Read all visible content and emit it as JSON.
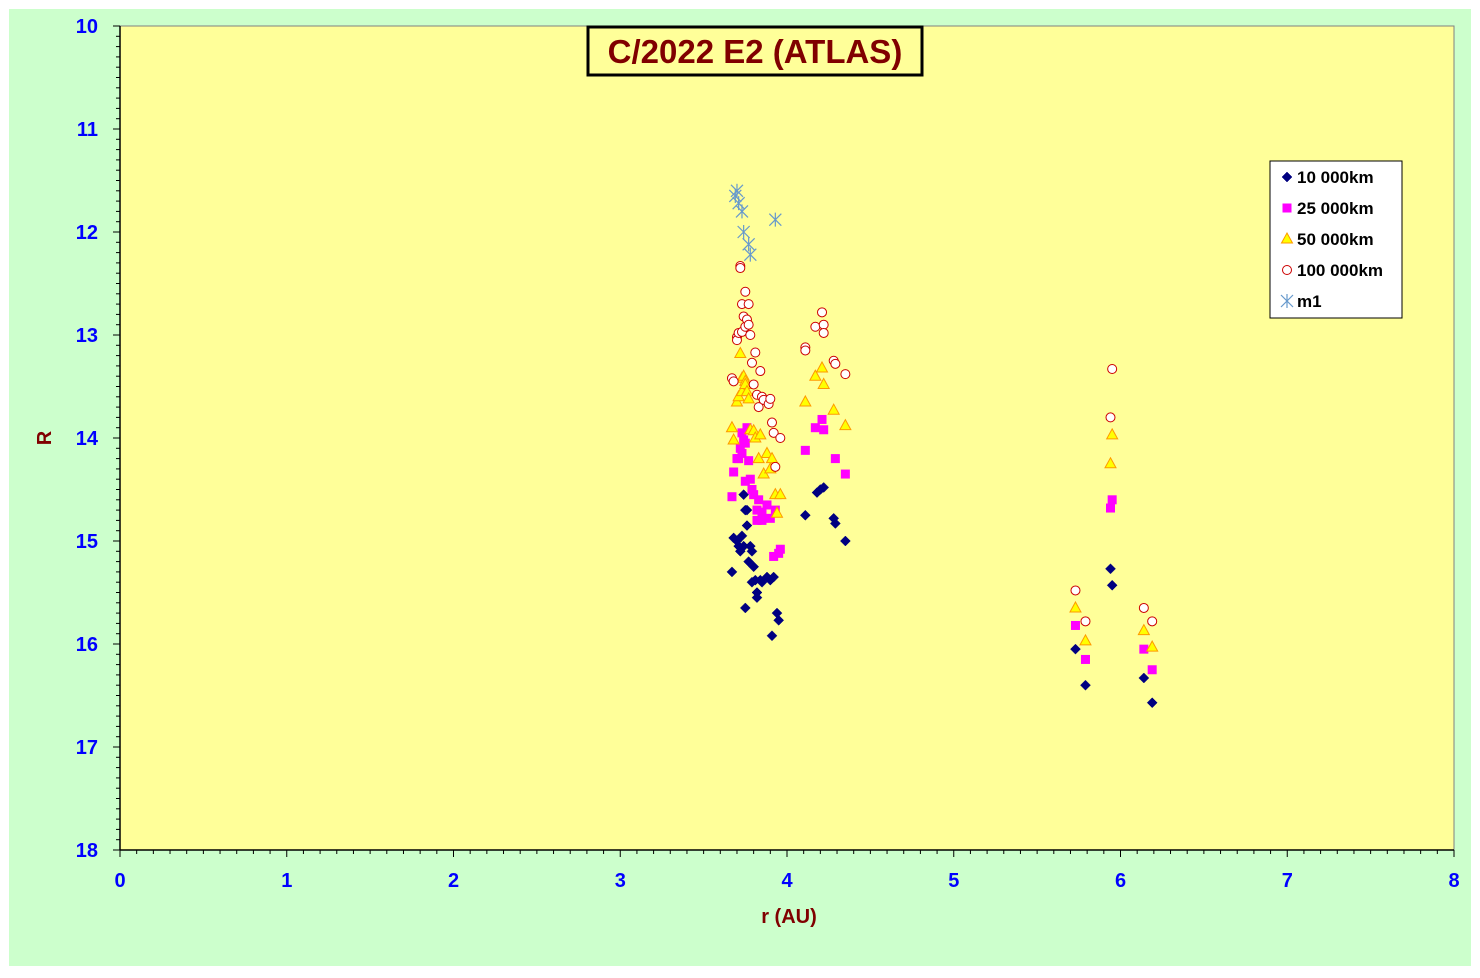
{
  "colors": {
    "outer_background": "#ccffcc",
    "plot_background": "#ffff99",
    "tick_label": "#0000ff",
    "axis_title": "#800000",
    "title_text": "#800000"
  },
  "chart_data": {
    "type": "scatter",
    "title": "C/2022 E2 (ATLAS)",
    "xlabel": "r (AU)",
    "ylabel": "R",
    "xlim": [
      0,
      8
    ],
    "ylim": [
      10,
      18
    ],
    "y_inverted": true,
    "grid": false,
    "legend_position": "top-right",
    "x_ticks": [
      "0",
      "1",
      "2",
      "3",
      "4",
      "5",
      "6",
      "7",
      "8"
    ],
    "y_ticks": [
      "10",
      "11",
      "12",
      "13",
      "14",
      "15",
      "16",
      "17",
      "18"
    ],
    "series": [
      {
        "name": "10 000km",
        "marker": "diamond",
        "color": "#000080",
        "points": [
          [
            3.67,
            15.3
          ],
          [
            3.68,
            14.97
          ],
          [
            3.7,
            15.0
          ],
          [
            3.71,
            15.05
          ],
          [
            3.72,
            15.1
          ],
          [
            3.73,
            14.95
          ],
          [
            3.74,
            15.05
          ],
          [
            3.74,
            14.55
          ],
          [
            3.75,
            15.65
          ],
          [
            3.75,
            14.7
          ],
          [
            3.76,
            14.7
          ],
          [
            3.76,
            14.85
          ],
          [
            3.77,
            15.2
          ],
          [
            3.78,
            15.05
          ],
          [
            3.79,
            15.1
          ],
          [
            3.79,
            15.4
          ],
          [
            3.8,
            15.25
          ],
          [
            3.81,
            15.38
          ],
          [
            3.82,
            15.5
          ],
          [
            3.82,
            15.55
          ],
          [
            3.84,
            15.38
          ],
          [
            3.85,
            15.4
          ],
          [
            3.88,
            15.35
          ],
          [
            3.9,
            15.38
          ],
          [
            3.91,
            15.92
          ],
          [
            3.92,
            15.35
          ],
          [
            3.94,
            15.7
          ],
          [
            3.95,
            15.77
          ],
          [
            4.11,
            14.75
          ],
          [
            4.18,
            14.53
          ],
          [
            4.2,
            14.5
          ],
          [
            4.22,
            14.48
          ],
          [
            4.28,
            14.78
          ],
          [
            4.29,
            14.83
          ],
          [
            4.35,
            15.0
          ],
          [
            5.73,
            16.05
          ],
          [
            5.79,
            16.4
          ],
          [
            5.94,
            15.27
          ],
          [
            5.95,
            15.43
          ],
          [
            6.14,
            16.33
          ],
          [
            6.19,
            16.57
          ]
        ]
      },
      {
        "name": "25 000km",
        "marker": "square",
        "color": "#ff00ff",
        "points": [
          [
            3.67,
            14.57
          ],
          [
            3.68,
            14.33
          ],
          [
            3.7,
            14.2
          ],
          [
            3.71,
            14.2
          ],
          [
            3.72,
            14.1
          ],
          [
            3.73,
            14.15
          ],
          [
            3.73,
            13.95
          ],
          [
            3.74,
            14.02
          ],
          [
            3.75,
            14.05
          ],
          [
            3.75,
            14.42
          ],
          [
            3.76,
            13.9
          ],
          [
            3.77,
            14.22
          ],
          [
            3.78,
            14.4
          ],
          [
            3.79,
            14.5
          ],
          [
            3.8,
            14.55
          ],
          [
            3.82,
            14.7
          ],
          [
            3.82,
            14.8
          ],
          [
            3.83,
            14.6
          ],
          [
            3.85,
            14.72
          ],
          [
            3.85,
            14.8
          ],
          [
            3.88,
            14.65
          ],
          [
            3.9,
            14.78
          ],
          [
            3.92,
            15.15
          ],
          [
            3.93,
            14.7
          ],
          [
            3.95,
            15.12
          ],
          [
            3.96,
            15.08
          ],
          [
            4.11,
            14.12
          ],
          [
            4.17,
            13.9
          ],
          [
            4.21,
            13.82
          ],
          [
            4.22,
            13.92
          ],
          [
            4.29,
            14.2
          ],
          [
            4.35,
            14.35
          ],
          [
            5.73,
            15.82
          ],
          [
            5.79,
            16.15
          ],
          [
            5.94,
            14.68
          ],
          [
            5.95,
            14.6
          ],
          [
            6.14,
            16.05
          ],
          [
            6.19,
            16.25
          ]
        ]
      },
      {
        "name": "50 000km",
        "marker": "triangle",
        "color": "#ff9900",
        "points": [
          [
            3.67,
            13.9
          ],
          [
            3.68,
            14.02
          ],
          [
            3.7,
            13.65
          ],
          [
            3.71,
            13.6
          ],
          [
            3.72,
            13.18
          ],
          [
            3.73,
            13.55
          ],
          [
            3.73,
            13.42
          ],
          [
            3.74,
            13.4
          ],
          [
            3.75,
            13.45
          ],
          [
            3.75,
            13.48
          ],
          [
            3.76,
            13.55
          ],
          [
            3.77,
            13.62
          ],
          [
            3.78,
            13.92
          ],
          [
            3.8,
            13.93
          ],
          [
            3.81,
            14.0
          ],
          [
            3.83,
            14.2
          ],
          [
            3.84,
            13.97
          ],
          [
            3.86,
            14.35
          ],
          [
            3.88,
            14.15
          ],
          [
            3.9,
            14.3
          ],
          [
            3.91,
            14.2
          ],
          [
            3.93,
            14.55
          ],
          [
            3.94,
            14.73
          ],
          [
            3.96,
            14.55
          ],
          [
            4.11,
            13.65
          ],
          [
            4.17,
            13.4
          ],
          [
            4.21,
            13.32
          ],
          [
            4.22,
            13.48
          ],
          [
            4.28,
            13.73
          ],
          [
            4.35,
            13.88
          ],
          [
            5.73,
            15.65
          ],
          [
            5.79,
            15.97
          ],
          [
            5.94,
            14.25
          ],
          [
            5.95,
            13.97
          ],
          [
            6.14,
            15.87
          ],
          [
            6.19,
            16.03
          ]
        ]
      },
      {
        "name": "100 000km",
        "marker": "circle",
        "color": "#cc0000",
        "points": [
          [
            3.67,
            13.42
          ],
          [
            3.68,
            13.45
          ],
          [
            3.7,
            13.02
          ],
          [
            3.7,
            13.05
          ],
          [
            3.71,
            12.98
          ],
          [
            3.72,
            12.33
          ],
          [
            3.72,
            12.35
          ],
          [
            3.73,
            12.97
          ],
          [
            3.73,
            12.7
          ],
          [
            3.74,
            12.82
          ],
          [
            3.75,
            12.58
          ],
          [
            3.75,
            12.92
          ],
          [
            3.76,
            12.85
          ],
          [
            3.77,
            12.7
          ],
          [
            3.77,
            12.9
          ],
          [
            3.78,
            13.0
          ],
          [
            3.79,
            13.27
          ],
          [
            3.8,
            13.48
          ],
          [
            3.81,
            13.17
          ],
          [
            3.82,
            13.58
          ],
          [
            3.83,
            13.7
          ],
          [
            3.84,
            13.35
          ],
          [
            3.85,
            13.6
          ],
          [
            3.86,
            13.63
          ],
          [
            3.89,
            13.67
          ],
          [
            3.9,
            13.62
          ],
          [
            3.91,
            13.85
          ],
          [
            3.92,
            13.95
          ],
          [
            3.93,
            14.28
          ],
          [
            3.96,
            14.0
          ],
          [
            4.11,
            13.12
          ],
          [
            4.11,
            13.15
          ],
          [
            4.17,
            12.92
          ],
          [
            4.21,
            12.78
          ],
          [
            4.22,
            12.9
          ],
          [
            4.22,
            12.98
          ],
          [
            4.28,
            13.25
          ],
          [
            4.29,
            13.28
          ],
          [
            4.35,
            13.38
          ],
          [
            5.73,
            15.48
          ],
          [
            5.79,
            15.78
          ],
          [
            5.94,
            13.8
          ],
          [
            5.95,
            13.33
          ],
          [
            6.14,
            15.65
          ],
          [
            6.19,
            15.78
          ]
        ]
      },
      {
        "name": "m1",
        "marker": "star",
        "color": "#6699cc",
        "points": [
          [
            3.69,
            11.65
          ],
          [
            3.7,
            11.6
          ],
          [
            3.71,
            11.72
          ],
          [
            3.73,
            11.8
          ],
          [
            3.74,
            12.0
          ],
          [
            3.77,
            12.12
          ],
          [
            3.78,
            12.22
          ],
          [
            3.93,
            11.88
          ]
        ]
      }
    ]
  }
}
